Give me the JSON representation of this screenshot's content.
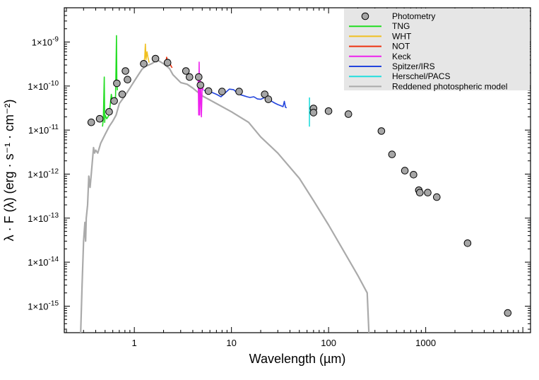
{
  "chart_data": {
    "type": "scatter",
    "title": "",
    "xlabel": "Wavelength (µm)",
    "ylabel": "λ · F (λ) (erg · s⁻¹ · cm⁻²)",
    "xscale": "log",
    "yscale": "log",
    "xlim": [
      0.19,
      12000
    ],
    "ylim": [
      2.5e-16,
      6e-09
    ],
    "x_ticks": [
      {
        "value": 1,
        "label": "1"
      },
      {
        "value": 10,
        "label": "10"
      },
      {
        "value": 100,
        "label": "100"
      },
      {
        "value": 1000,
        "label": "1000"
      }
    ],
    "y_ticks": [
      {
        "value": 1e-15,
        "mant": "1×10",
        "exp": "-15"
      },
      {
        "value": 1e-14,
        "mant": "1×10",
        "exp": "-14"
      },
      {
        "value": 1e-13,
        "mant": "1×10",
        "exp": "-13"
      },
      {
        "value": 1e-12,
        "mant": "1×10",
        "exp": "-12"
      },
      {
        "value": 1e-11,
        "mant": "1×10",
        "exp": "-11"
      },
      {
        "value": 1e-10,
        "mant": "1×10",
        "exp": "-10"
      },
      {
        "value": 1e-09,
        "mant": "1×10",
        "exp": "-9"
      }
    ],
    "legend_position": "top-right",
    "legend": [
      {
        "name": "Photometry",
        "kind": "marker",
        "color": "#a0a0a0"
      },
      {
        "name": "TNG",
        "kind": "line",
        "color": "#22dd22"
      },
      {
        "name": "WHT",
        "kind": "line",
        "color": "#f0c020"
      },
      {
        "name": "NOT",
        "kind": "line",
        "color": "#ee3311"
      },
      {
        "name": "Keck",
        "kind": "line",
        "color": "#ee22ee"
      },
      {
        "name": "Spitzer/IRS",
        "kind": "line",
        "color": "#2244dd"
      },
      {
        "name": "Herschel/PACS",
        "kind": "line",
        "color": "#22dddd"
      },
      {
        "name": "Reddened photospheric model",
        "kind": "line",
        "color": "#aaaaaa"
      }
    ],
    "photometry": [
      [
        0.36,
        1.5e-11
      ],
      [
        0.44,
        1.8e-11
      ],
      [
        0.55,
        2.6e-11
      ],
      [
        0.62,
        4.6e-11
      ],
      [
        0.66,
        1.15e-10
      ],
      [
        0.75,
        6.5e-11
      ],
      [
        0.81,
        2.2e-10
      ],
      [
        0.85,
        1.4e-10
      ],
      [
        1.25,
        3.2e-10
      ],
      [
        1.65,
        4.2e-10
      ],
      [
        2.2,
        3.4e-10
      ],
      [
        3.4,
        2.2e-10
      ],
      [
        3.7,
        1.6e-10
      ],
      [
        4.6,
        1.6e-10
      ],
      [
        4.8,
        1.05e-10
      ],
      [
        5.8,
        7.7e-11
      ],
      [
        8.0,
        7.5e-11
      ],
      [
        12.0,
        7.5e-11
      ],
      [
        22.0,
        6.5e-11
      ],
      [
        24.0,
        5e-11
      ],
      [
        70.0,
        3.1e-11
      ],
      [
        70.0,
        2.5e-11
      ],
      [
        100.0,
        2.7e-11
      ],
      [
        160.0,
        2.3e-11
      ],
      [
        350.0,
        9.5e-12
      ],
      [
        450.0,
        2.8e-12
      ],
      [
        610.0,
        1.2e-12
      ],
      [
        750.0,
        9.7e-13
      ],
      [
        850.0,
        4.3e-13
      ],
      [
        870.0,
        3.8e-13
      ],
      [
        1050.0,
        3.8e-13
      ],
      [
        1300.0,
        3e-13
      ],
      [
        2700.0,
        2.7e-14
      ],
      [
        7000.0,
        7e-16
      ]
    ],
    "series": [
      {
        "name": "TNG",
        "color": "#22dd22",
        "points": [
          [
            0.47,
            1.2e-11
          ],
          [
            0.48,
            1.8e-11
          ],
          [
            0.49,
            1.6e-10
          ],
          [
            0.495,
            1.5e-11
          ],
          [
            0.5,
            2.2e-11
          ],
          [
            0.52,
            1.8e-11
          ],
          [
            0.55,
            2.2e-11
          ],
          [
            0.58,
            6.5e-11
          ],
          [
            0.6,
            4e-11
          ],
          [
            0.62,
            5.5e-11
          ],
          [
            0.64,
            4.8e-11
          ],
          [
            0.655,
            1.4e-09
          ],
          [
            0.66,
            1.2e-10
          ],
          [
            0.67,
            8e-11
          ]
        ]
      },
      {
        "name": "WHT",
        "color": "#f0c020",
        "points": [
          [
            1.25,
            3.3e-10
          ],
          [
            1.28,
            4.5e-10
          ],
          [
            1.3,
            9e-10
          ],
          [
            1.32,
            4e-10
          ],
          [
            1.35,
            6e-10
          ],
          [
            1.38,
            4.5e-10
          ],
          [
            1.42,
            3.4e-10
          ]
        ]
      },
      {
        "name": "NOT",
        "color": "#ee3311",
        "points": [
          [
            2.05,
            3.8e-10
          ],
          [
            2.1,
            3.2e-10
          ],
          [
            2.15,
            4.5e-10
          ],
          [
            2.2,
            3.7e-10
          ],
          [
            2.3,
            3.4e-10
          ],
          [
            2.4,
            2.8e-10
          ],
          [
            2.45,
            2.6e-10
          ]
        ]
      },
      {
        "name": "Keck",
        "color": "#ee22ee",
        "points": [
          [
            4.55,
            1.4e-10
          ],
          [
            4.6,
            2.2e-11
          ],
          [
            4.65,
            3.5e-10
          ],
          [
            4.7,
            2.2e-11
          ],
          [
            4.8,
            1.3e-10
          ],
          [
            4.9,
            2e-11
          ],
          [
            5.0,
            1.1e-10
          ],
          [
            5.1,
            8e-11
          ]
        ]
      },
      {
        "name": "Spitzer/IRS",
        "color": "#2244dd",
        "points": [
          [
            5.2,
            8e-11
          ],
          [
            6,
            7.5e-11
          ],
          [
            7,
            6.5e-11
          ],
          [
            7.8,
            5.7e-11
          ],
          [
            8.5,
            6.8e-11
          ],
          [
            9.5,
            8.5e-11
          ],
          [
            10.5,
            8.3e-11
          ],
          [
            11.5,
            7e-11
          ],
          [
            12.5,
            6.3e-11
          ],
          [
            13.5,
            6e-11
          ],
          [
            14.5,
            5.7e-11
          ],
          [
            15.5,
            5.5e-11
          ],
          [
            17,
            5.7e-11
          ],
          [
            18.5,
            5.1e-11
          ],
          [
            20,
            5e-11
          ],
          [
            22,
            5.5e-11
          ],
          [
            24,
            5e-11
          ],
          [
            26,
            4.5e-11
          ],
          [
            28,
            4.1e-11
          ],
          [
            30,
            3.8e-11
          ],
          [
            32,
            3.6e-11
          ],
          [
            34,
            3.4e-11
          ],
          [
            35,
            4.5e-11
          ],
          [
            36,
            3.3e-11
          ],
          [
            37,
            3.2e-11
          ]
        ]
      },
      {
        "name": "Herschel/PACS",
        "color": "#22dddd",
        "points": [
          [
            63.5,
            1.2e-11
          ],
          [
            63.6,
            5.5e-11
          ]
        ]
      },
      {
        "name": "Reddened photospheric model",
        "color": "#aaaaaa",
        "points": [
          [
            0.28,
            2.5e-16
          ],
          [
            0.29,
            3e-15
          ],
          [
            0.3,
            3e-14
          ],
          [
            0.31,
            8e-14
          ],
          [
            0.315,
            3e-14
          ],
          [
            0.32,
            1e-13
          ],
          [
            0.33,
            2e-13
          ],
          [
            0.34,
            9e-13
          ],
          [
            0.35,
            5e-13
          ],
          [
            0.36,
            1e-12
          ],
          [
            0.37,
            2e-12
          ],
          [
            0.38,
            4e-12
          ],
          [
            0.39,
            3e-12
          ],
          [
            0.4,
            3.5e-12
          ],
          [
            0.42,
            3e-12
          ],
          [
            0.45,
            5e-12
          ],
          [
            0.5,
            8e-12
          ],
          [
            0.55,
            1.2e-11
          ],
          [
            0.6,
            1.6e-11
          ],
          [
            0.65,
            2.2e-11
          ],
          [
            0.7,
            4e-11
          ],
          [
            0.8,
            6e-11
          ],
          [
            0.9,
            9e-11
          ],
          [
            1.0,
            1.3e-10
          ],
          [
            1.1,
            1.8e-10
          ],
          [
            1.2,
            2.4e-10
          ],
          [
            1.3,
            2.8e-10
          ],
          [
            1.5,
            3.2e-10
          ],
          [
            1.6,
            3.5e-10
          ],
          [
            1.7,
            4e-10
          ],
          [
            2.0,
            3.2e-10
          ],
          [
            2.3,
            2.5e-10
          ],
          [
            2.5,
            1.8e-10
          ],
          [
            3.0,
            1.2e-10
          ],
          [
            3.5,
            1.1e-10
          ],
          [
            4.0,
            9e-11
          ],
          [
            5,
            6e-11
          ],
          [
            7,
            4e-11
          ],
          [
            10,
            2.6e-11
          ],
          [
            15,
            1.5e-11
          ],
          [
            20,
            7e-12
          ],
          [
            30,
            3e-12
          ],
          [
            50,
            8e-13
          ],
          [
            70,
            2.5e-13
          ],
          [
            100,
            7e-14
          ],
          [
            150,
            1.5e-14
          ],
          [
            200,
            5e-15
          ],
          [
            250,
            2e-15
          ],
          [
            260,
            2.5e-16
          ]
        ]
      }
    ]
  }
}
